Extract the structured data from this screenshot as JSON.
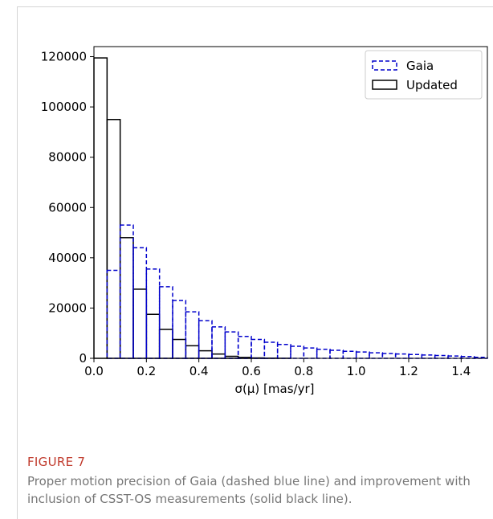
{
  "chart_data": {
    "type": "bar",
    "subtype": "step-histogram",
    "xlabel": "σ(μ) [mas/yr]",
    "ylabel": "",
    "xlim": [
      0.0,
      1.5
    ],
    "ylim": [
      0,
      124000
    ],
    "x_ticks": [
      0.0,
      0.2,
      0.4,
      0.6,
      0.8,
      1.0,
      1.2,
      1.4
    ],
    "x_tick_labels": [
      "0.0",
      "0.2",
      "0.4",
      "0.6",
      "0.8",
      "1.0",
      "1.2",
      "1.4"
    ],
    "y_ticks": [
      0,
      20000,
      40000,
      60000,
      80000,
      100000,
      120000
    ],
    "y_tick_labels": [
      "0",
      "20000",
      "40000",
      "60000",
      "80000",
      "100000",
      "120000"
    ],
    "grid": false,
    "legend_position": "top-right",
    "bin_edges": [
      0.0,
      0.05,
      0.1,
      0.15,
      0.2,
      0.25,
      0.3,
      0.35,
      0.4,
      0.45,
      0.5,
      0.55,
      0.6,
      0.65,
      0.7,
      0.75,
      0.8,
      0.85,
      0.9,
      0.95,
      1.0,
      1.05,
      1.1,
      1.15,
      1.2,
      1.25,
      1.3,
      1.35,
      1.4,
      1.45,
      1.5
    ],
    "series": [
      {
        "name": "Gaia",
        "color": "#0000cc",
        "linestyle": "dashed",
        "values": [
          0,
          35000,
          53000,
          44000,
          35500,
          28500,
          23000,
          18500,
          15000,
          12500,
          10500,
          8700,
          7500,
          6400,
          5500,
          4800,
          4100,
          3600,
          3200,
          2800,
          2500,
          2200,
          1900,
          1700,
          1500,
          1300,
          1100,
          900,
          700,
          400
        ]
      },
      {
        "name": "Updated",
        "color": "#000000",
        "linestyle": "solid",
        "values": [
          119500,
          95000,
          48000,
          27500,
          17500,
          11500,
          7500,
          5000,
          3000,
          1700,
          800,
          350,
          150,
          60,
          20,
          0,
          0,
          0,
          0,
          0,
          0,
          0,
          0,
          0,
          0,
          0,
          0,
          0,
          0,
          0
        ]
      }
    ]
  },
  "caption": {
    "label": "FIGURE 7",
    "text": "Proper motion precision of Gaia (dashed blue line) and improvement with inclusion of CSST-OS measurements (solid black line)."
  }
}
